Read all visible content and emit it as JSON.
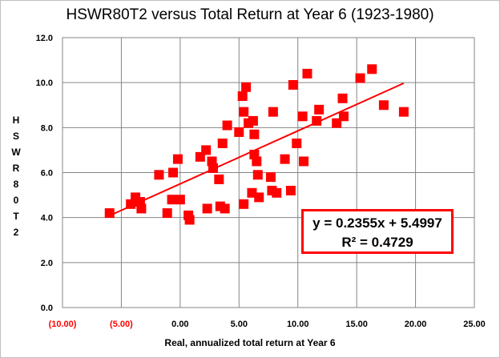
{
  "chart_data": {
    "type": "scatter",
    "title": "HSWR80T2 versus Total Return at Year 6 (1923-1980)",
    "xlabel": "Real, annualized total return at Year 6",
    "ylabel": "HSWR80T2",
    "xlim": [
      -10,
      25
    ],
    "ylim": [
      0,
      12
    ],
    "x_ticks": [
      -10,
      -5,
      0,
      5,
      10,
      15,
      20,
      25
    ],
    "x_tick_labels": [
      "(10.00)",
      "(5.00)",
      "0.00",
      "5.00",
      "10.00",
      "15.00",
      "20.00",
      "25.00"
    ],
    "y_ticks": [
      0,
      2,
      4,
      6,
      8,
      10,
      12
    ],
    "y_tick_labels": [
      "0.0",
      "2.0",
      "4.0",
      "6.0",
      "8.0",
      "10.0",
      "12.0"
    ],
    "grid": true,
    "marker_color": "#ff0000",
    "trendline": {
      "slope": 0.2355,
      "intercept": 5.4997,
      "x_range": [
        -6,
        19
      ]
    },
    "equation": "y = 0.2355x + 5.4997",
    "r_squared": "R² = 0.4729",
    "points": [
      {
        "x": -6,
        "y": 4.2
      },
      {
        "x": -4.2,
        "y": 4.6
      },
      {
        "x": -3.8,
        "y": 4.9
      },
      {
        "x": -3.4,
        "y": 4.7
      },
      {
        "x": -3.3,
        "y": 4.4
      },
      {
        "x": -1.8,
        "y": 5.9
      },
      {
        "x": -1.1,
        "y": 4.2
      },
      {
        "x": -0.7,
        "y": 4.8
      },
      {
        "x": -0.6,
        "y": 6.0
      },
      {
        "x": -0.2,
        "y": 6.6
      },
      {
        "x": 0.0,
        "y": 4.8
      },
      {
        "x": 0.7,
        "y": 4.1
      },
      {
        "x": 0.8,
        "y": 3.9
      },
      {
        "x": 1.7,
        "y": 6.7
      },
      {
        "x": 2.2,
        "y": 7.0
      },
      {
        "x": 2.3,
        "y": 4.4
      },
      {
        "x": 2.7,
        "y": 6.5
      },
      {
        "x": 2.8,
        "y": 6.2
      },
      {
        "x": 3.3,
        "y": 5.7
      },
      {
        "x": 3.4,
        "y": 4.5
      },
      {
        "x": 3.6,
        "y": 7.3
      },
      {
        "x": 3.8,
        "y": 4.4
      },
      {
        "x": 4.0,
        "y": 8.1
      },
      {
        "x": 5.0,
        "y": 7.8
      },
      {
        "x": 5.3,
        "y": 9.4
      },
      {
        "x": 5.4,
        "y": 4.6
      },
      {
        "x": 5.4,
        "y": 8.7
      },
      {
        "x": 5.6,
        "y": 9.8
      },
      {
        "x": 5.8,
        "y": 8.2
      },
      {
        "x": 6.2,
        "y": 8.3
      },
      {
        "x": 6.1,
        "y": 5.1
      },
      {
        "x": 6.3,
        "y": 6.8
      },
      {
        "x": 6.3,
        "y": 7.7
      },
      {
        "x": 6.5,
        "y": 6.5
      },
      {
        "x": 6.6,
        "y": 5.9
      },
      {
        "x": 6.7,
        "y": 4.9
      },
      {
        "x": 7.7,
        "y": 5.8
      },
      {
        "x": 7.8,
        "y": 5.2
      },
      {
        "x": 7.9,
        "y": 8.7
      },
      {
        "x": 8.2,
        "y": 5.1
      },
      {
        "x": 8.9,
        "y": 6.6
      },
      {
        "x": 9.4,
        "y": 5.2
      },
      {
        "x": 9.6,
        "y": 9.9
      },
      {
        "x": 9.9,
        "y": 7.3
      },
      {
        "x": 10.4,
        "y": 8.5
      },
      {
        "x": 10.5,
        "y": 6.5
      },
      {
        "x": 10.8,
        "y": 10.4
      },
      {
        "x": 11.6,
        "y": 8.3
      },
      {
        "x": 11.8,
        "y": 8.8
      },
      {
        "x": 13.3,
        "y": 8.2
      },
      {
        "x": 13.8,
        "y": 9.3
      },
      {
        "x": 13.9,
        "y": 8.5
      },
      {
        "x": 15.3,
        "y": 10.2
      },
      {
        "x": 16.3,
        "y": 10.6
      },
      {
        "x": 17.3,
        "y": 9.0
      },
      {
        "x": 19.0,
        "y": 8.7
      }
    ]
  }
}
